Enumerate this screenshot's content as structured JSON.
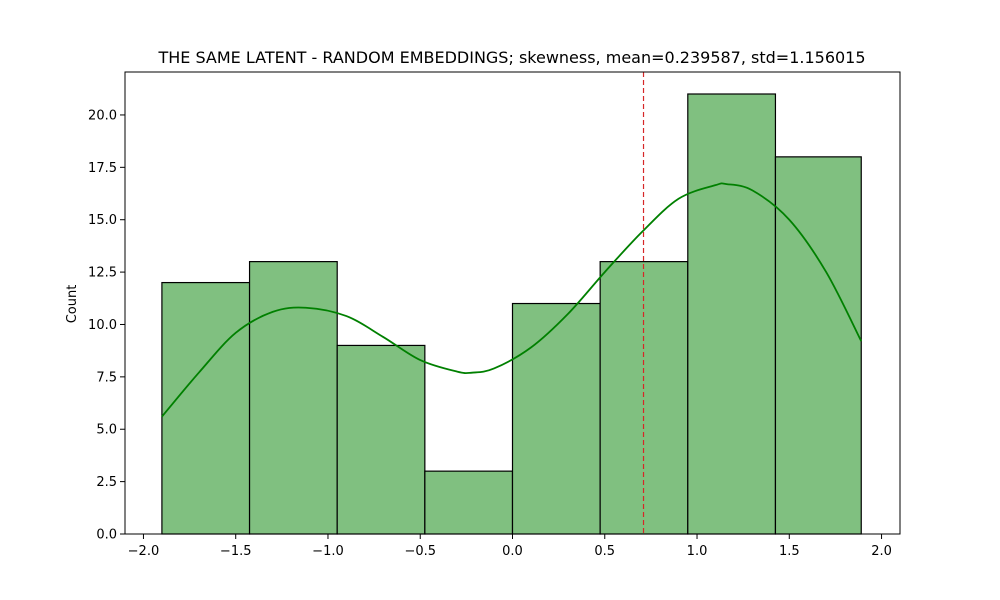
{
  "chart_data": {
    "type": "histogram",
    "title": "THE SAME LATENT - RANDOM EMBEDDINGS; skewness, mean=0.239587, std=1.156015",
    "xlabel": "",
    "ylabel": "Count",
    "xlim": [
      -2.1,
      2.1
    ],
    "ylim": [
      0,
      22.05
    ],
    "xticks": [
      -2.0,
      -1.5,
      -1.0,
      -0.5,
      0.0,
      0.5,
      1.0,
      1.5,
      2.0
    ],
    "xtick_labels": [
      "−2.0",
      "−1.5",
      "−1.0",
      "−0.5",
      "0.0",
      "0.5",
      "1.0",
      "1.5",
      "2.0"
    ],
    "yticks": [
      0,
      2.5,
      5,
      7.5,
      10,
      12.5,
      15,
      17.5,
      20
    ],
    "ytick_labels": [
      "0.0",
      "2.5",
      "5.0",
      "7.5",
      "10.0",
      "12.5",
      "15.0",
      "17.5",
      "20.0"
    ],
    "bins": [
      {
        "x0": -1.9,
        "x1": -1.425,
        "count": 12
      },
      {
        "x0": -1.425,
        "x1": -0.95,
        "count": 13
      },
      {
        "x0": -0.95,
        "x1": -0.475,
        "count": 9
      },
      {
        "x0": -0.475,
        "x1": 0.0,
        "count": 3
      },
      {
        "x0": 0.0,
        "x1": 0.475,
        "count": 11
      },
      {
        "x0": 0.475,
        "x1": 0.95,
        "count": 13
      },
      {
        "x0": 0.95,
        "x1": 1.425,
        "count": 21
      },
      {
        "x0": 1.425,
        "x1": 1.89,
        "count": 18
      }
    ],
    "kde": {
      "x": [
        -1.9,
        -1.7,
        -1.5,
        -1.3,
        -1.12,
        -0.9,
        -0.7,
        -0.5,
        -0.3,
        -0.22,
        -0.1,
        0.1,
        0.3,
        0.5,
        0.7,
        0.9,
        1.1,
        1.16,
        1.3,
        1.5,
        1.7,
        1.89
      ],
      "y": [
        5.6,
        7.7,
        9.6,
        10.6,
        10.8,
        10.4,
        9.4,
        8.3,
        7.75,
        7.7,
        7.9,
        8.9,
        10.5,
        12.5,
        14.4,
        16.0,
        16.65,
        16.7,
        16.4,
        15.0,
        12.5,
        9.2
      ]
    },
    "vline": {
      "x": 0.71,
      "style": "dashed"
    },
    "bar_color": "#80c080",
    "bar_edge_color": "#000000",
    "kde_color": "#008000",
    "vline_color": "#d62728",
    "grid": false,
    "legend": "none"
  }
}
